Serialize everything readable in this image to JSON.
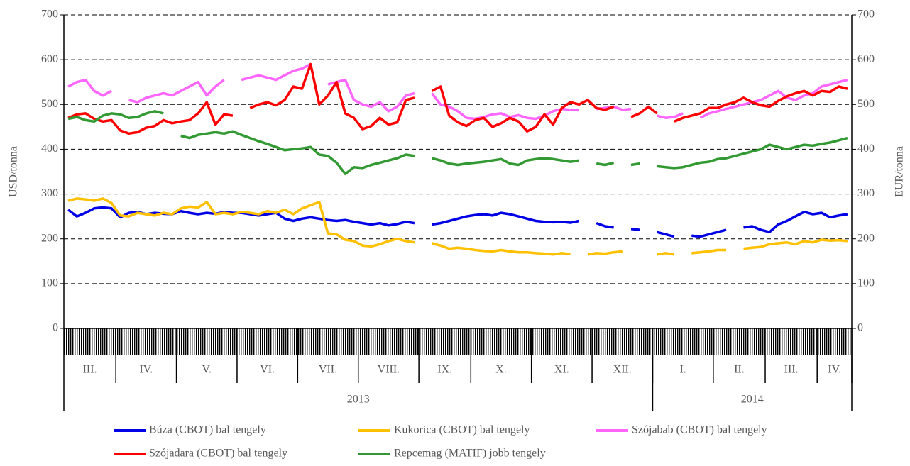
{
  "chart_data": {
    "type": "line",
    "ylabel": "USD/tonna",
    "y2label": "EUR/tonna",
    "ylim": [
      0,
      700
    ],
    "yticks": [
      0,
      100,
      200,
      300,
      400,
      500,
      600,
      700
    ],
    "y2lim": [
      0,
      700
    ],
    "y2ticks": [
      0,
      100,
      200,
      300,
      400,
      500,
      600,
      700
    ],
    "grid": true,
    "months": [
      {
        "label": "III.",
        "count": 6
      },
      {
        "label": "IV.",
        "count": 7
      },
      {
        "label": "V.",
        "count": 7
      },
      {
        "label": "VI.",
        "count": 7
      },
      {
        "label": "VII.",
        "count": 7
      },
      {
        "label": "VIII.",
        "count": 7
      },
      {
        "label": "IX.",
        "count": 6
      },
      {
        "label": "X.",
        "count": 7
      },
      {
        "label": "XI.",
        "count": 7
      },
      {
        "label": "XII.",
        "count": 7
      },
      {
        "label": "I.",
        "count": 7
      },
      {
        "label": "II.",
        "count": 6
      },
      {
        "label": "III.",
        "count": 6
      },
      {
        "label": "IV.",
        "count": 4
      }
    ],
    "years": [
      {
        "label": "2013",
        "count": 68
      },
      {
        "label": "2014",
        "count": 23
      }
    ],
    "series": [
      {
        "name": "Búza (CBOT) bal tengely",
        "color": "#0000e6",
        "values": [
          265,
          250,
          258,
          268,
          270,
          268,
          248,
          258,
          260,
          255,
          258,
          256,
          255,
          262,
          258,
          255,
          258,
          256,
          260,
          258,
          258,
          255,
          252,
          255,
          258,
          245,
          240,
          245,
          248,
          245,
          242,
          240,
          242,
          238,
          235,
          232,
          235,
          230,
          233,
          238,
          235,
          null,
          232,
          235,
          240,
          245,
          250,
          253,
          255,
          252,
          258,
          255,
          250,
          245,
          240,
          238,
          237,
          238,
          236,
          240,
          null,
          235,
          228,
          225,
          null,
          222,
          220,
          null,
          215,
          210,
          205,
          null,
          207,
          205,
          210,
          215,
          220,
          null,
          225,
          228,
          220,
          215,
          232,
          240,
          250,
          260,
          255,
          258,
          248,
          252,
          255
        ]
      },
      {
        "name": "Kukorica (CBOT) bal tengely",
        "color": "#ffc000",
        "values": [
          285,
          290,
          288,
          285,
          290,
          280,
          252,
          250,
          258,
          255,
          252,
          258,
          255,
          268,
          272,
          270,
          282,
          255,
          258,
          255,
          260,
          258,
          255,
          262,
          258,
          265,
          255,
          268,
          275,
          282,
          212,
          210,
          198,
          195,
          185,
          183,
          188,
          195,
          200,
          195,
          192,
          null,
          190,
          185,
          178,
          180,
          178,
          175,
          173,
          172,
          175,
          172,
          170,
          170,
          168,
          167,
          165,
          168,
          166,
          null,
          165,
          168,
          167,
          170,
          172,
          null,
          170,
          null,
          165,
          168,
          165,
          null,
          168,
          170,
          172,
          175,
          175,
          null,
          178,
          180,
          182,
          188,
          190,
          192,
          188,
          195,
          192,
          198,
          196,
          197,
          195
        ]
      },
      {
        "name": "Szójabab (CBOT) bal tengely",
        "color": "#ff66ff",
        "values": [
          540,
          550,
          555,
          530,
          520,
          530,
          null,
          510,
          505,
          515,
          520,
          525,
          520,
          530,
          540,
          550,
          520,
          540,
          555,
          null,
          555,
          560,
          565,
          560,
          555,
          565,
          575,
          580,
          590,
          null,
          545,
          550,
          555,
          510,
          500,
          495,
          505,
          485,
          495,
          520,
          525,
          null,
          525,
          500,
          495,
          485,
          470,
          468,
          472,
          478,
          480,
          472,
          476,
          470,
          468,
          475,
          485,
          490,
          488,
          487,
          null,
          490,
          492,
          495,
          488,
          490,
          null,
          null,
          475,
          470,
          472,
          480,
          null,
          470,
          480,
          485,
          490,
          495,
          500,
          505,
          510,
          520,
          530,
          515,
          510,
          520,
          525,
          540,
          545,
          550,
          555
        ]
      },
      {
        "name": "Szójadara (CBOT) bal tengely",
        "color": "#ff0000",
        "values": [
          470,
          478,
          480,
          468,
          462,
          465,
          442,
          435,
          438,
          448,
          452,
          465,
          458,
          462,
          465,
          480,
          505,
          455,
          478,
          475,
          null,
          492,
          500,
          505,
          498,
          510,
          540,
          535,
          590,
          500,
          520,
          550,
          480,
          470,
          445,
          452,
          470,
          455,
          460,
          510,
          515,
          null,
          530,
          540,
          475,
          460,
          452,
          465,
          470,
          450,
          458,
          470,
          462,
          440,
          450,
          478,
          455,
          492,
          505,
          500,
          510,
          492,
          488,
          495,
          null,
          472,
          480,
          495,
          480,
          null,
          462,
          470,
          475,
          480,
          492,
          492,
          500,
          505,
          515,
          505,
          498,
          495,
          508,
          518,
          525,
          530,
          520,
          530,
          528,
          540,
          535
        ]
      },
      {
        "name": "Repcemag (MATIF) jobb tengely",
        "color": "#339933",
        "axis": "y2",
        "values": [
          468,
          472,
          465,
          462,
          475,
          480,
          478,
          470,
          472,
          480,
          485,
          480,
          null,
          430,
          425,
          432,
          435,
          438,
          435,
          440,
          432,
          425,
          418,
          412,
          405,
          398,
          400,
          402,
          405,
          388,
          385,
          370,
          345,
          360,
          358,
          365,
          370,
          375,
          380,
          388,
          385,
          null,
          380,
          375,
          368,
          365,
          368,
          370,
          372,
          375,
          378,
          368,
          365,
          375,
          378,
          380,
          378,
          375,
          372,
          375,
          null,
          368,
          365,
          370,
          null,
          365,
          368,
          null,
          362,
          360,
          358,
          360,
          365,
          370,
          372,
          378,
          380,
          385,
          390,
          395,
          400,
          410,
          405,
          400,
          405,
          410,
          408,
          412,
          415,
          420,
          425
        ]
      }
    ]
  }
}
